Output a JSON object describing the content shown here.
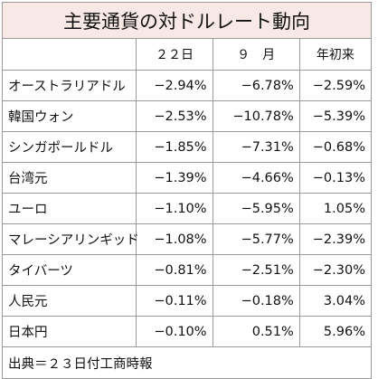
{
  "title": "主要通貨の対ドルレート動向",
  "headers": [
    "",
    "２２日",
    "９　月",
    "年初来"
  ],
  "rows": [
    {
      "name": "オーストラリアドル",
      "day22": "−2.94%",
      "september": "−6.78%",
      "ytd": "−2.59%"
    },
    {
      "name": "韓国ウォン",
      "day22": "−2.53%",
      "september": "−10.78%",
      "ytd": "−5.39%"
    },
    {
      "name": "シンガポールドル",
      "day22": "−1.85%",
      "september": "−7.31%",
      "ytd": "−0.68%"
    },
    {
      "name": "台湾元",
      "day22": "−1.39%",
      "september": "−4.66%",
      "ytd": "−0.13%"
    },
    {
      "name": "ユーロ",
      "day22": "−1.10%",
      "september": "−5.95%",
      "ytd": "1.05%"
    },
    {
      "name": "マレーシアリンギッド",
      "day22": "−1.08%",
      "september": "−5.77%",
      "ytd": "−2.39%"
    },
    {
      "name": "タイバーツ",
      "day22": "−0.81%",
      "september": "−2.51%",
      "ytd": "−2.30%"
    },
    {
      "name": "人民元",
      "day22": "−0.11%",
      "september": "−0.18%",
      "ytd": "3.04%"
    },
    {
      "name": "日本円",
      "day22": "−0.10%",
      "september": "0.51%",
      "ytd": "5.96%"
    }
  ],
  "source": "出典＝２３日付工商時報",
  "colors": {
    "title_background": "#f9e9e6",
    "border": "#9a9a9a"
  }
}
